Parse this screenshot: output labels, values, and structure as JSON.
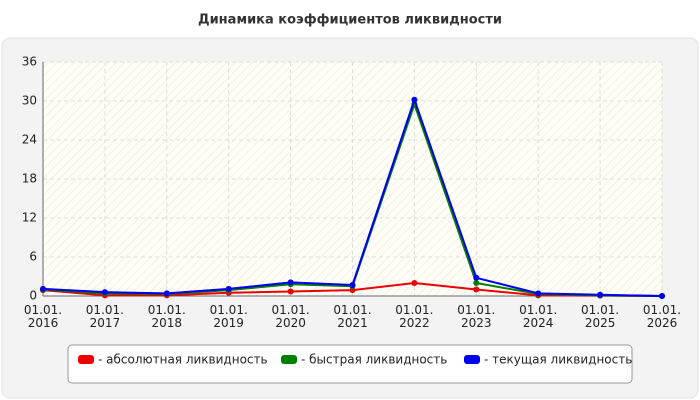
{
  "chart_data": {
    "type": "line",
    "title": "Динамика коэффициентов ликвидности",
    "categories": [
      "01.01. 2016",
      "01.01. 2017",
      "01.01. 2018",
      "01.01. 2019",
      "01.01. 2020",
      "01.01. 2021",
      "01.01. 2022",
      "01.01. 2023",
      "01.01. 2024",
      "01.01. 2025",
      "01.01. 2026"
    ],
    "series": [
      {
        "name": "- абсолютная ликвидность",
        "color": "#ee0000",
        "values": [
          0.9,
          0.1,
          0.1,
          0.5,
          0.7,
          0.9,
          2.0,
          1.0,
          0.1,
          0.05,
          0
        ]
      },
      {
        "name": "- быстрая ликвидность",
        "color": "#008000",
        "values": [
          1.0,
          0.4,
          0.3,
          0.9,
          1.8,
          1.5,
          29.5,
          2.0,
          0.3,
          0.1,
          0
        ]
      },
      {
        "name": "- текущая ликвидность",
        "color": "#0000ee",
        "values": [
          1.1,
          0.6,
          0.4,
          1.1,
          2.1,
          1.7,
          30.2,
          2.8,
          0.4,
          0.2,
          0
        ]
      }
    ],
    "ylim": [
      0,
      36
    ],
    "yticks": [
      0,
      6,
      12,
      18,
      24,
      30,
      36
    ],
    "grid": true
  }
}
